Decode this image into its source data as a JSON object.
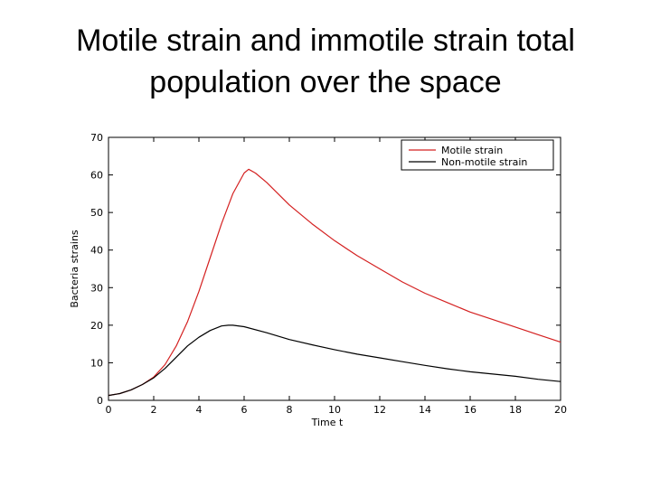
{
  "slide": {
    "title_line1": "Motile strain and immotile strain total",
    "title_line2": "population over the space"
  },
  "chart_data": {
    "type": "line",
    "title": "",
    "xlabel": "Time t",
    "ylabel": "Bacteria strains",
    "xlim": [
      0,
      20
    ],
    "ylim": [
      0,
      70
    ],
    "xticks": [
      0,
      2,
      4,
      6,
      8,
      10,
      12,
      14,
      16,
      18,
      20
    ],
    "yticks": [
      0,
      10,
      20,
      30,
      40,
      50,
      60,
      70
    ],
    "grid": false,
    "legend_position": "top-right",
    "series": [
      {
        "name": "Motile strain",
        "color": "#d42020",
        "x": [
          0,
          0.5,
          1,
          1.5,
          2,
          2.5,
          3,
          3.5,
          4,
          4.5,
          5,
          5.5,
          6,
          6.2,
          6.5,
          7,
          8,
          9,
          10,
          11,
          12,
          13,
          14,
          15,
          16,
          17,
          18,
          19,
          20
        ],
        "y": [
          1.3,
          1.8,
          2.8,
          4.2,
          6.2,
          9.5,
          14.5,
          21,
          29,
          38,
          47,
          55,
          60.5,
          61.5,
          60.5,
          58,
          52,
          47,
          42.5,
          38.5,
          35,
          31.5,
          28.5,
          26,
          23.5,
          21.5,
          19.5,
          17.5,
          15.5
        ]
      },
      {
        "name": "Non-motile strain",
        "color": "#000000",
        "x": [
          0,
          0.5,
          1,
          1.5,
          2,
          2.5,
          3,
          3.5,
          4,
          4.5,
          5,
          5.3,
          5.5,
          6,
          7,
          8,
          9,
          10,
          11,
          12,
          13,
          14,
          15,
          16,
          17,
          18,
          19,
          20
        ],
        "y": [
          1.3,
          1.8,
          2.8,
          4.2,
          6,
          8.5,
          11.5,
          14.5,
          16.8,
          18.6,
          19.8,
          20,
          20,
          19.6,
          18,
          16.2,
          14.8,
          13.5,
          12.3,
          11.3,
          10.3,
          9.3,
          8.4,
          7.6,
          7,
          6.4,
          5.6,
          5
        ]
      }
    ]
  }
}
